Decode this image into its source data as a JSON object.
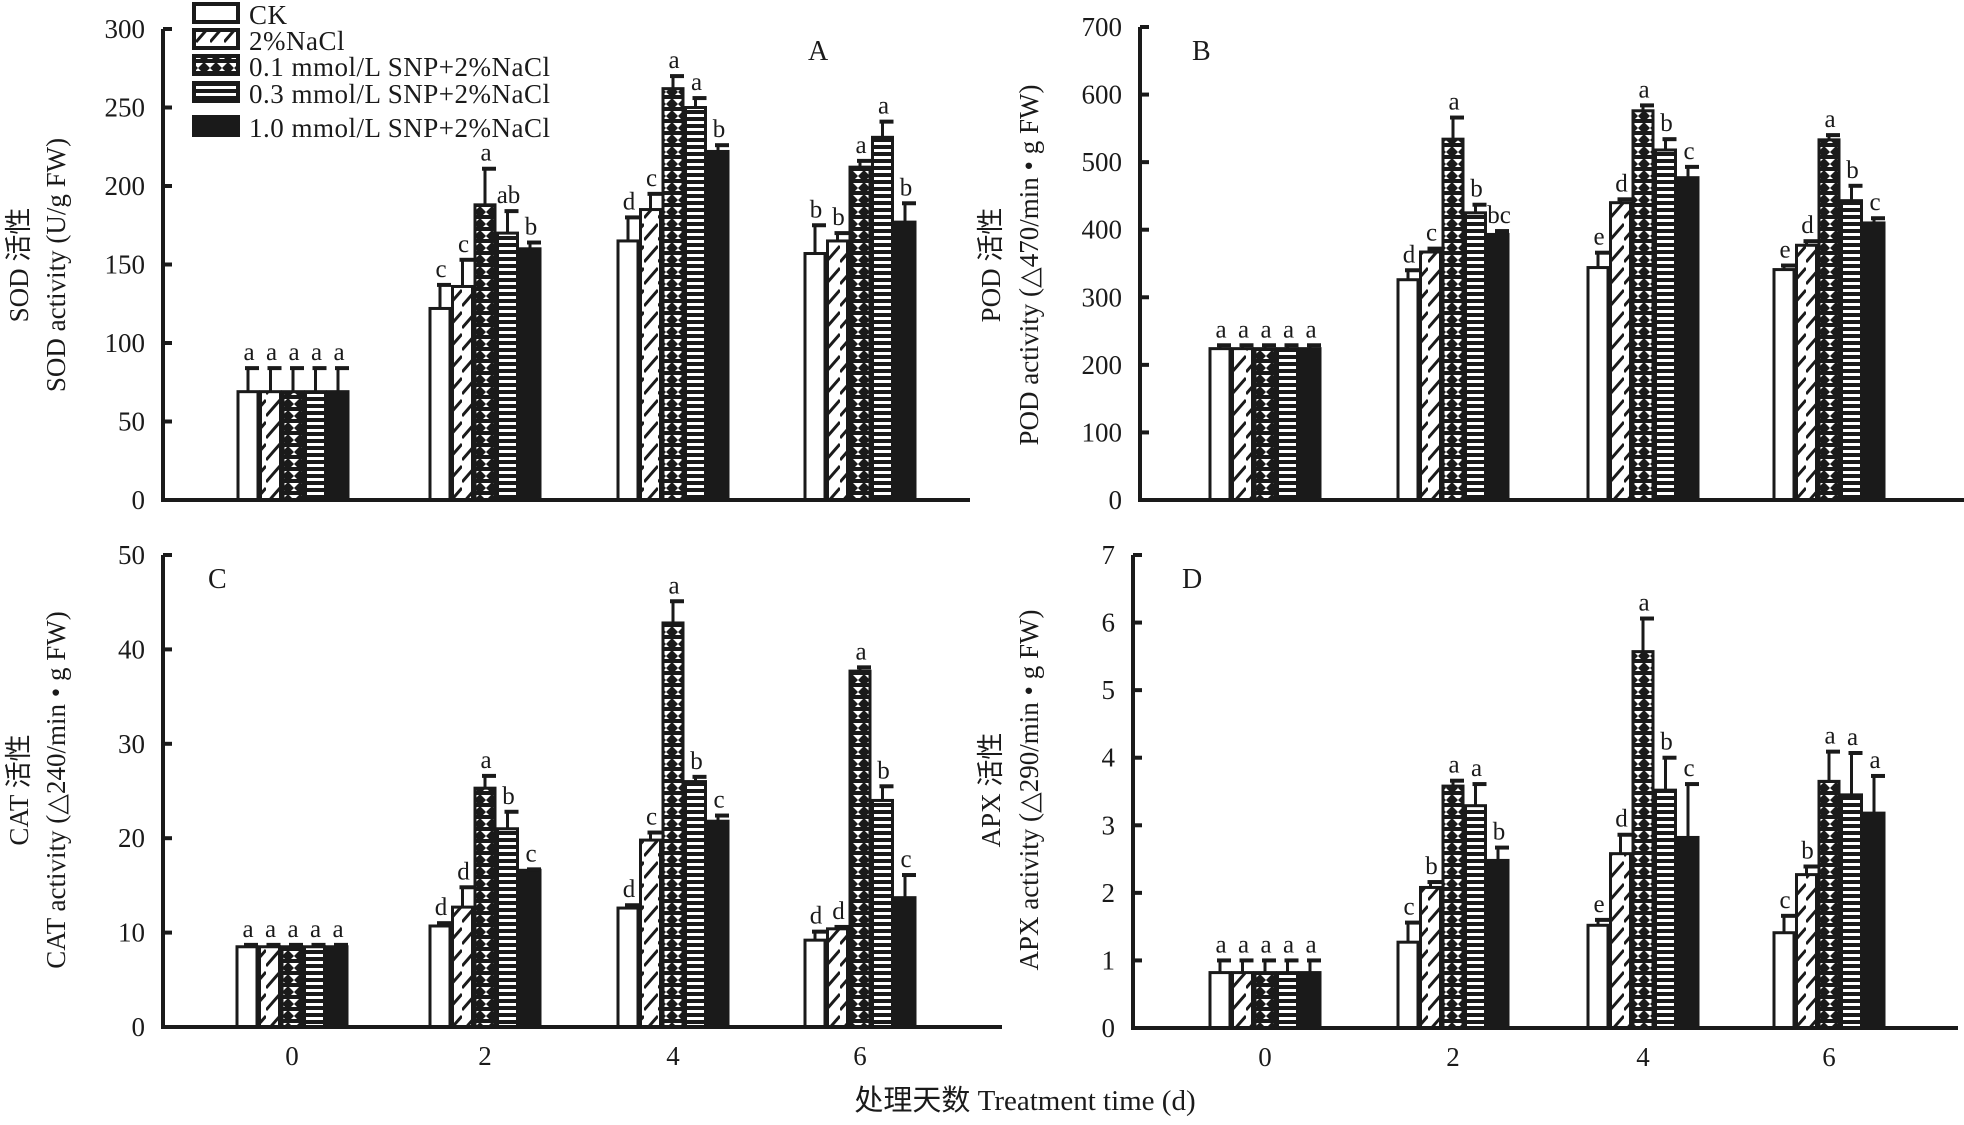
{
  "figure": {
    "x_axis_title": "处理天数 Treatment time (d)",
    "colors": {
      "ink": "#1a1a1a",
      "background": "#ffffff"
    }
  },
  "legend": {
    "entries": [
      {
        "label": "CK",
        "pattern": "open"
      },
      {
        "label": "2%NaCl",
        "pattern": "diagonal"
      },
      {
        "label": "0.1 mmol/L SNP+2%NaCl",
        "pattern": "crosshatch"
      },
      {
        "label": "0.3 mmol/L SNP+2%NaCl",
        "pattern": "horizontal"
      },
      {
        "label": "1.0 mmol/L SNP+2%NaCl",
        "pattern": "solid"
      }
    ]
  },
  "chart_data": [
    {
      "type": "bar",
      "panel": "A",
      "title": "",
      "ylabel_cn": "SOD 活性",
      "ylabel": "SOD activity (U/g  FW)",
      "xlabel": "",
      "categories": [
        "0",
        "2",
        "4",
        "6"
      ],
      "ylim": [
        0,
        300
      ],
      "yticks": [
        0,
        50,
        100,
        150,
        200,
        250,
        300
      ],
      "show_xticklabels": false,
      "legend_position": "top-left",
      "series": [
        {
          "name": "CK",
          "values": [
            69,
            122,
            165,
            157
          ],
          "errors": [
            15,
            15,
            15,
            18
          ],
          "letters": [
            "a",
            "c",
            "d",
            "b"
          ]
        },
        {
          "name": "2%NaCl",
          "values": [
            69,
            136,
            185,
            165
          ],
          "errors": [
            15,
            17,
            10,
            5
          ],
          "letters": [
            "a",
            "c",
            "c",
            "b"
          ]
        },
        {
          "name": "0.1 mmol/L SNP+2%NaCl",
          "values": [
            69,
            188,
            262,
            212
          ],
          "errors": [
            15,
            23,
            8,
            4
          ],
          "letters": [
            "a",
            "a",
            "a",
            "a"
          ]
        },
        {
          "name": "0.3 mmol/L SNP+2%NaCl",
          "values": [
            69,
            170,
            250,
            231
          ],
          "errors": [
            15,
            14,
            6,
            10
          ],
          "letters": [
            "a",
            "ab",
            "a",
            "a"
          ]
        },
        {
          "name": "1.0 mmol/L SNP+2%NaCl",
          "values": [
            69,
            160,
            222,
            177
          ],
          "errors": [
            15,
            4,
            4,
            12
          ],
          "letters": [
            "a",
            "b",
            "b",
            "b"
          ]
        }
      ]
    },
    {
      "type": "bar",
      "panel": "B",
      "title": "",
      "ylabel_cn": "POD 活性",
      "ylabel": "POD activity (△470/min • g FW)",
      "xlabel": "",
      "categories": [
        "0",
        "2",
        "4",
        "6"
      ],
      "ylim": [
        0,
        700
      ],
      "yticks": [
        0,
        100,
        200,
        300,
        400,
        500,
        600,
        700
      ],
      "show_xticklabels": false,
      "series": [
        {
          "name": "CK",
          "values": [
            224,
            326,
            344,
            341
          ],
          "errors": [
            5,
            14,
            22,
            6
          ],
          "letters": [
            "a",
            "d",
            "e",
            "e"
          ]
        },
        {
          "name": "2%NaCl",
          "values": [
            224,
            367,
            440,
            377
          ],
          "errors": [
            5,
            5,
            5,
            6
          ],
          "letters": [
            "a",
            "c",
            "d",
            "d"
          ]
        },
        {
          "name": "0.1 mmol/L SNP+2%NaCl",
          "values": [
            224,
            534,
            576,
            533
          ],
          "errors": [
            5,
            32,
            8,
            7
          ],
          "letters": [
            "a",
            "a",
            "a",
            "a"
          ]
        },
        {
          "name": "0.3 mmol/L SNP+2%NaCl",
          "values": [
            224,
            425,
            518,
            443
          ],
          "errors": [
            5,
            12,
            16,
            22
          ],
          "letters": [
            "a",
            "b",
            "b",
            "b"
          ]
        },
        {
          "name": "1.0 mmol/L SNP+2%NaCl",
          "values": [
            224,
            393,
            477,
            410
          ],
          "errors": [
            5,
            5,
            16,
            7
          ],
          "letters": [
            "a",
            "bc",
            "c",
            "c"
          ]
        }
      ]
    },
    {
      "type": "bar",
      "panel": "C",
      "title": "",
      "ylabel_cn": "CAT 活性",
      "ylabel": "CAT activity (△240/min • g FW)",
      "xlabel": "",
      "categories": [
        "0",
        "2",
        "4",
        "6"
      ],
      "ylim": [
        0,
        50
      ],
      "yticks": [
        0,
        10,
        20,
        30,
        40,
        50
      ],
      "show_xticklabels": true,
      "series": [
        {
          "name": "CK",
          "values": [
            8.5,
            10.7,
            12.6,
            9.2
          ],
          "errors": [
            0.2,
            0.3,
            0.3,
            0.9
          ],
          "letters": [
            "a",
            "d",
            "d",
            "d"
          ]
        },
        {
          "name": "2%NaCl",
          "values": [
            8.5,
            12.7,
            19.8,
            10.4
          ],
          "errors": [
            0.2,
            2.1,
            0.8,
            0.2
          ],
          "letters": [
            "a",
            "d",
            "c",
            "d"
          ]
        },
        {
          "name": "0.1 mmol/L SNP+2%NaCl",
          "values": [
            8.5,
            25.3,
            42.8,
            37.7
          ],
          "errors": [
            0.2,
            1.3,
            2.3,
            0.4
          ],
          "letters": [
            "a",
            "a",
            "a",
            "a"
          ]
        },
        {
          "name": "0.3 mmol/L SNP+2%NaCl",
          "values": [
            8.5,
            21.0,
            26.0,
            24.0
          ],
          "errors": [
            0.2,
            1.8,
            0.5,
            1.5
          ],
          "letters": [
            "a",
            "b",
            "b",
            "b"
          ]
        },
        {
          "name": "1.0 mmol/L SNP+2%NaCl",
          "values": [
            8.5,
            16.6,
            21.8,
            13.7
          ],
          "errors": [
            0.2,
            0.1,
            0.6,
            2.4
          ],
          "letters": [
            "a",
            "c",
            "c",
            "c"
          ]
        }
      ]
    },
    {
      "type": "bar",
      "panel": "D",
      "title": "",
      "ylabel_cn": "APX 活性",
      "ylabel": "APX activity (△290/min • g FW)",
      "xlabel": "",
      "categories": [
        "0",
        "2",
        "4",
        "6"
      ],
      "ylim": [
        0,
        7
      ],
      "yticks": [
        0,
        1,
        2,
        3,
        4,
        5,
        6,
        7
      ],
      "show_xticklabels": true,
      "series": [
        {
          "name": "CK",
          "values": [
            0.82,
            1.27,
            1.52,
            1.41
          ],
          "errors": [
            0.18,
            0.29,
            0.08,
            0.25
          ],
          "letters": [
            "a",
            "c",
            "e",
            "c"
          ]
        },
        {
          "name": "2%NaCl",
          "values": [
            0.82,
            2.08,
            2.58,
            2.27
          ],
          "errors": [
            0.18,
            0.08,
            0.28,
            0.12
          ],
          "letters": [
            "a",
            "b",
            "d",
            "b"
          ]
        },
        {
          "name": "0.1 mmol/L SNP+2%NaCl",
          "values": [
            0.82,
            3.58,
            5.57,
            3.65
          ],
          "errors": [
            0.18,
            0.08,
            0.49,
            0.44
          ],
          "letters": [
            "a",
            "a",
            "a",
            "a"
          ]
        },
        {
          "name": "0.3 mmol/L SNP+2%NaCl",
          "values": [
            0.82,
            3.29,
            3.52,
            3.45
          ],
          "errors": [
            0.18,
            0.32,
            0.48,
            0.62
          ],
          "letters": [
            "a",
            "a",
            "b",
            "a"
          ]
        },
        {
          "name": "1.0 mmol/L SNP+2%NaCl",
          "values": [
            0.82,
            2.48,
            2.82,
            3.18
          ],
          "errors": [
            0.18,
            0.19,
            0.79,
            0.55
          ],
          "letters": [
            "a",
            "b",
            "c",
            "a"
          ]
        }
      ]
    }
  ]
}
